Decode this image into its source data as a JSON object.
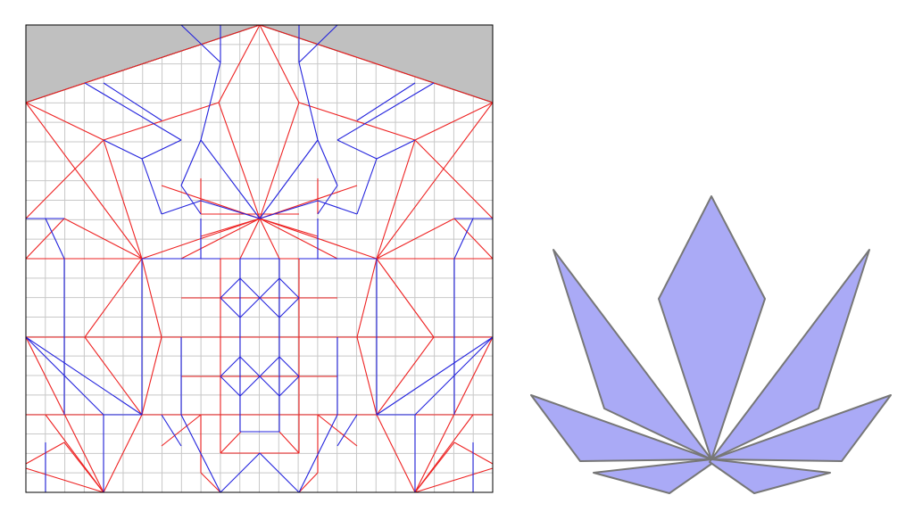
{
  "colors": {
    "mountain_fold": "#ee2222",
    "valley_fold": "#2222dd",
    "grid_line": "#c8c8c8",
    "border": "#000000",
    "excluded_region": "#c0c0c0",
    "petal_fill": "#aaaaf6",
    "petal_edge": "#777777"
  },
  "crease_pattern": {
    "grid_divisions": 24,
    "fold_types": [
      "mountain",
      "valley"
    ]
  },
  "folded_model": {
    "shape": "lotus",
    "petal_count": 7
  }
}
